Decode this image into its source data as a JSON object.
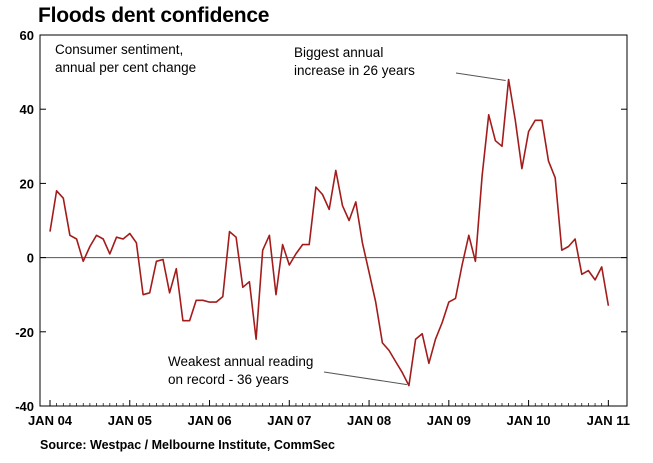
{
  "title": "Floods dent confidence",
  "source": "Source: Westpac / Melbourne Institute, CommSec",
  "chart_data": {
    "type": "line",
    "title": "Floods dent confidence",
    "xlabel": "",
    "ylabel": "",
    "ylim": [
      -40,
      60
    ],
    "yticks": [
      "60",
      "40",
      "20",
      "0",
      "-20",
      "-40"
    ],
    "xticks": [
      "JAN 04",
      "JAN 05",
      "JAN 06",
      "JAN 07",
      "JAN 08",
      "JAN 09",
      "JAN 10",
      "JAN 11"
    ],
    "grid": false,
    "legend": "none",
    "annotations": [
      {
        "lines": [
          "Consumer sentiment,",
          "annual per cent change"
        ]
      },
      {
        "lines": [
          "Biggest annual",
          "increase in 26 years"
        ]
      },
      {
        "lines": [
          "Weakest annual reading",
          "on record - 36 years"
        ]
      }
    ],
    "series": [
      {
        "color": "#a31c1c",
        "x": [
          "2004-01",
          "2004-02",
          "2004-03",
          "2004-04",
          "2004-05",
          "2004-06",
          "2004-07",
          "2004-08",
          "2004-09",
          "2004-10",
          "2004-11",
          "2004-12",
          "2005-01",
          "2005-02",
          "2005-03",
          "2005-04",
          "2005-05",
          "2005-06",
          "2005-07",
          "2005-08",
          "2005-09",
          "2005-10",
          "2005-11",
          "2005-12",
          "2006-01",
          "2006-02",
          "2006-03",
          "2006-04",
          "2006-05",
          "2006-06",
          "2006-07",
          "2006-08",
          "2006-09",
          "2006-10",
          "2006-11",
          "2006-12",
          "2007-01",
          "2007-02",
          "2007-03",
          "2007-04",
          "2007-05",
          "2007-06",
          "2007-07",
          "2007-08",
          "2007-09",
          "2007-10",
          "2007-11",
          "2007-12",
          "2008-01",
          "2008-02",
          "2008-03",
          "2008-04",
          "2008-05",
          "2008-06",
          "2008-07",
          "2008-08",
          "2008-09",
          "2008-10",
          "2008-11",
          "2008-12",
          "2009-01",
          "2009-02",
          "2009-03",
          "2009-04",
          "2009-05",
          "2009-06",
          "2009-07",
          "2009-08",
          "2009-09",
          "2009-10",
          "2009-11",
          "2009-12",
          "2010-01",
          "2010-02",
          "2010-03",
          "2010-04",
          "2010-05",
          "2010-06",
          "2010-07",
          "2010-08",
          "2010-09",
          "2010-10",
          "2010-11",
          "2010-12",
          "2011-01"
        ],
        "values": [
          7,
          18,
          16,
          6,
          5,
          -1,
          3,
          6,
          5,
          1,
          5.5,
          5,
          6.5,
          4,
          -10,
          -9.5,
          -1,
          -0.5,
          -9.5,
          -3,
          -17,
          -17,
          -11.5,
          -11.5,
          -12,
          -12,
          -10.5,
          7,
          5.5,
          -8,
          -6.5,
          -22,
          2,
          6,
          -10,
          3.5,
          -2,
          1,
          3.5,
          3.5,
          19,
          17,
          13,
          23.5,
          14,
          10,
          15,
          4,
          -4,
          -12,
          -23,
          -25,
          -28,
          -31,
          -34.5,
          -22,
          -20.5,
          -28.5,
          -22,
          -17.5,
          -12,
          -11,
          -2,
          6,
          -1,
          22,
          38.5,
          31.5,
          30,
          48,
          37,
          24,
          34,
          37,
          37,
          26,
          21.5,
          2,
          3,
          5,
          -4.5,
          -3.5,
          -6,
          -2.5,
          -13
        ]
      }
    ]
  }
}
